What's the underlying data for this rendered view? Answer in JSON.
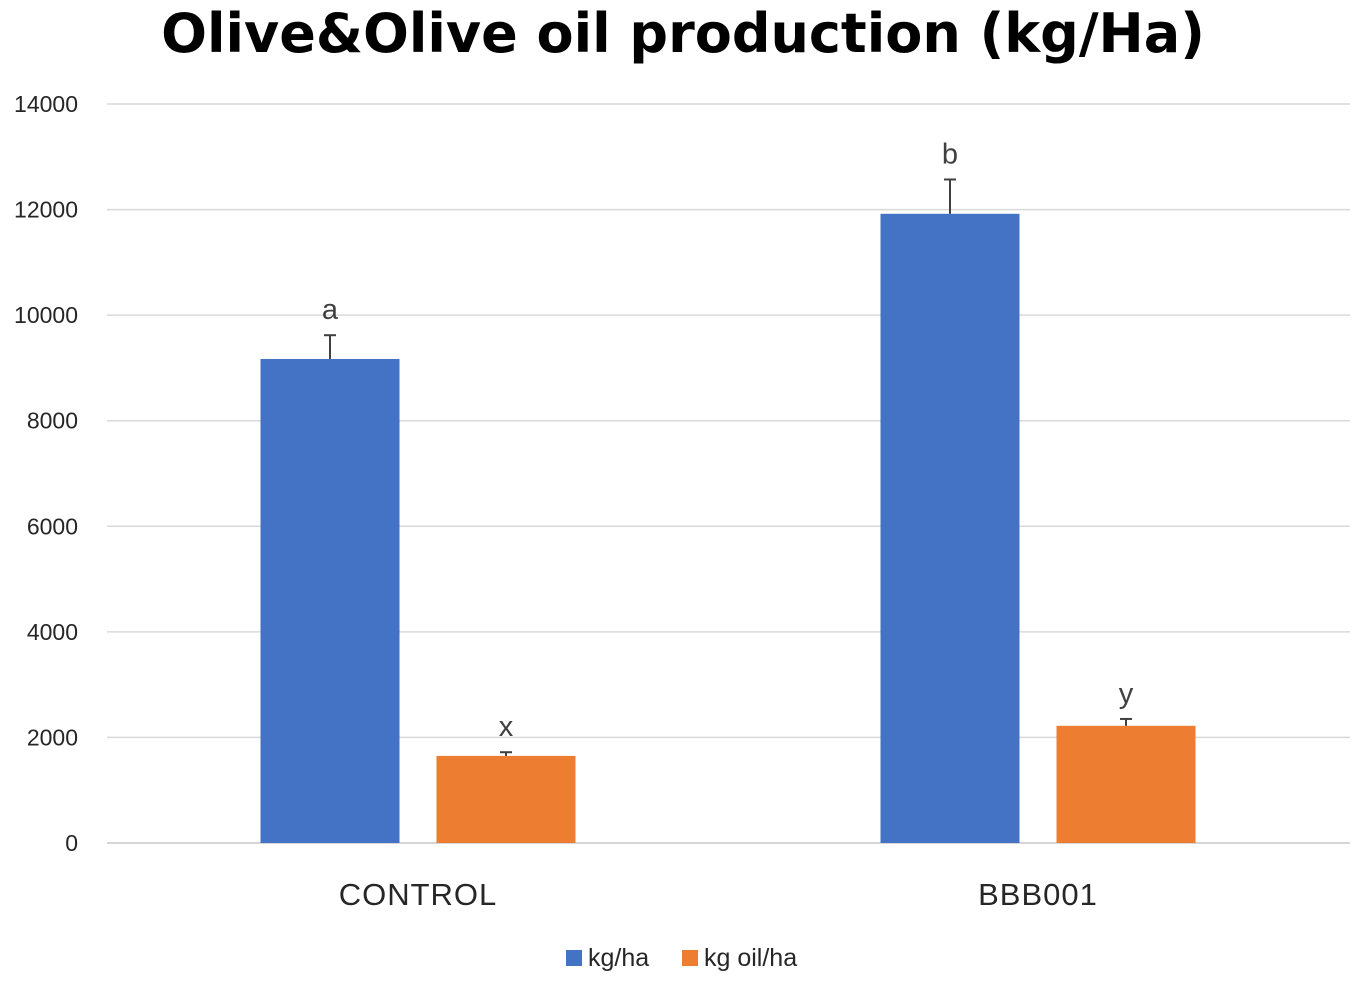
{
  "chart_data": {
    "type": "bar",
    "title": "Olive&Olive oil production (kg/Ha)",
    "xlabel": "",
    "ylabel": "",
    "ylim": [
      0,
      14000
    ],
    "yticks": [
      0,
      2000,
      4000,
      6000,
      8000,
      10000,
      12000,
      14000
    ],
    "grid": true,
    "legend_position": "bottom",
    "categories": [
      "CONTROL",
      "BBB001"
    ],
    "series": [
      {
        "name": "kg/ha",
        "color": "#4472c4",
        "values": [
          9170,
          11920
        ],
        "errors": [
          450,
          650
        ],
        "labels": [
          "a",
          "b"
        ]
      },
      {
        "name": "kg oil/ha",
        "color": "#ed7d31",
        "values": [
          1650,
          2220
        ],
        "errors": [
          70,
          130
        ],
        "labels": [
          "x",
          "y"
        ]
      }
    ]
  }
}
